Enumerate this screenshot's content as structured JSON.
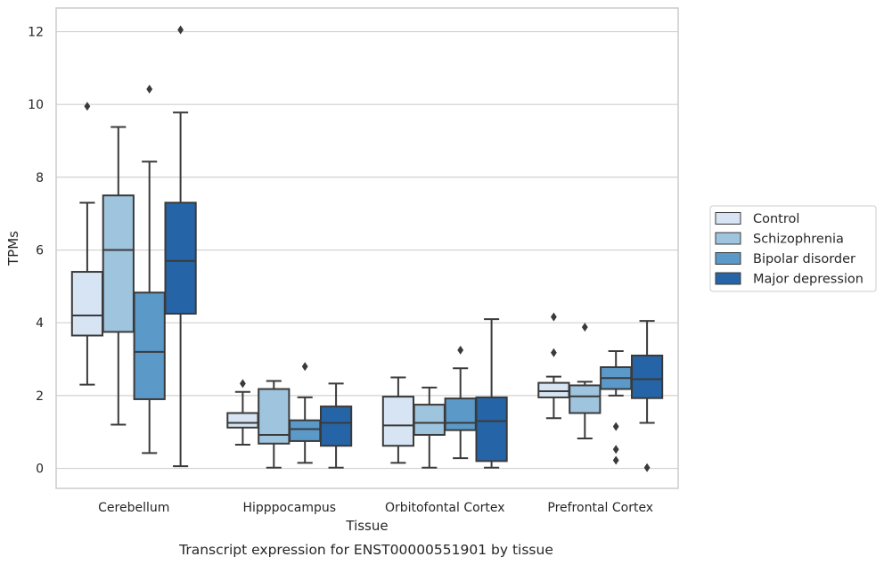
{
  "chart_data": {
    "type": "box",
    "caption": "Transcript expression for ENST00000551901 by tissue",
    "xlabel": "Tissue",
    "ylabel": "TPMs",
    "ylim": [
      -0.55,
      12.65
    ],
    "yticks": [
      "0",
      "2",
      "4",
      "6",
      "8",
      "10",
      "12"
    ],
    "grid": "horizontal",
    "legend_position": "right",
    "categories": [
      "Cerebellum",
      "Hipppocampus",
      "Orbitofontal Cortex",
      "Prefrontal Cortex"
    ],
    "series": [
      {
        "name": "Control",
        "color": "#d6e4f3",
        "boxes": [
          {
            "whisker_low": 2.3,
            "q1": 3.65,
            "median": 4.2,
            "q3": 5.4,
            "whisker_high": 7.3,
            "outliers": [
              9.95
            ]
          },
          {
            "whisker_low": 0.65,
            "q1": 1.12,
            "median": 1.25,
            "q3": 1.52,
            "whisker_high": 2.1,
            "outliers": [
              2.33
            ]
          },
          {
            "whisker_low": 0.15,
            "q1": 0.62,
            "median": 1.18,
            "q3": 1.97,
            "whisker_high": 2.5,
            "outliers": []
          },
          {
            "whisker_low": 1.38,
            "q1": 1.95,
            "median": 2.12,
            "q3": 2.35,
            "whisker_high": 2.52,
            "outliers": [
              3.18,
              4.16
            ]
          }
        ]
      },
      {
        "name": "Schizophrenia",
        "color": "#9fc4de",
        "boxes": [
          {
            "whisker_low": 1.2,
            "q1": 3.75,
            "median": 6.0,
            "q3": 7.5,
            "whisker_high": 9.38,
            "outliers": []
          },
          {
            "whisker_low": 0.02,
            "q1": 0.68,
            "median": 0.92,
            "q3": 2.18,
            "whisker_high": 2.4,
            "outliers": []
          },
          {
            "whisker_low": 0.02,
            "q1": 0.92,
            "median": 1.25,
            "q3": 1.75,
            "whisker_high": 2.22,
            "outliers": []
          },
          {
            "whisker_low": 0.82,
            "q1": 1.52,
            "median": 1.98,
            "q3": 2.28,
            "whisker_high": 2.38,
            "outliers": [
              3.88
            ]
          }
        ]
      },
      {
        "name": "Bipolar disorder",
        "color": "#5b99c8",
        "boxes": [
          {
            "whisker_low": 0.42,
            "q1": 1.9,
            "median": 3.2,
            "q3": 4.83,
            "whisker_high": 8.43,
            "outliers": [
              10.42
            ]
          },
          {
            "whisker_low": 0.15,
            "q1": 0.75,
            "median": 1.08,
            "q3": 1.32,
            "whisker_high": 1.95,
            "outliers": [
              2.8
            ]
          },
          {
            "whisker_low": 0.28,
            "q1": 1.05,
            "median": 1.25,
            "q3": 1.92,
            "whisker_high": 2.75,
            "outliers": [
              3.25
            ]
          },
          {
            "whisker_low": 2.0,
            "q1": 2.18,
            "median": 2.48,
            "q3": 2.78,
            "whisker_high": 3.22,
            "outliers": [
              1.15,
              0.52,
              0.22
            ]
          }
        ]
      },
      {
        "name": "Major depression",
        "color": "#2565a7",
        "boxes": [
          {
            "whisker_low": 0.06,
            "q1": 4.25,
            "median": 5.7,
            "q3": 7.3,
            "whisker_high": 9.78,
            "outliers": [
              12.05
            ]
          },
          {
            "whisker_low": 0.02,
            "q1": 0.62,
            "median": 1.25,
            "q3": 1.7,
            "whisker_high": 2.33,
            "outliers": []
          },
          {
            "whisker_low": 0.02,
            "q1": 0.2,
            "median": 1.3,
            "q3": 1.95,
            "whisker_high": 4.1,
            "outliers": []
          },
          {
            "whisker_low": 1.25,
            "q1": 1.93,
            "median": 2.45,
            "q3": 3.1,
            "whisker_high": 4.05,
            "outliers": [
              0.02
            ]
          }
        ]
      }
    ]
  }
}
